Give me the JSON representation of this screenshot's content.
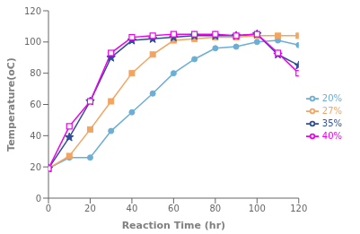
{
  "chart_data": {
    "type": "line",
    "xlabel": "Reaction Time (hr)",
    "ylabel": "Temperature(oC)",
    "x": [
      0,
      10,
      20,
      30,
      40,
      50,
      60,
      70,
      80,
      90,
      100,
      110,
      120
    ],
    "series": [
      {
        "name": "20%",
        "color": "#6BAED6",
        "marker": "circle",
        "line_style": "solid",
        "values": [
          19,
          26,
          26,
          43,
          55,
          67,
          80,
          89,
          96,
          97,
          100,
          101,
          98
        ]
      },
      {
        "name": "27%",
        "color": "#F4A460",
        "marker": "square",
        "line_style": "solid",
        "values": [
          19,
          27,
          44,
          62,
          80,
          92,
          101,
          102,
          103,
          103,
          104,
          104,
          104
        ]
      },
      {
        "name": "35%",
        "color": "#2E4D9A",
        "marker": "star",
        "line_style": "solid",
        "values": [
          19,
          39,
          62,
          90,
          101,
          102,
          103,
          104,
          104,
          104,
          105,
          92,
          85
        ]
      },
      {
        "name": "40%",
        "color": "#EE00EE",
        "marker": "square_open",
        "line_style": "solid",
        "values": [
          19,
          46,
          62,
          93,
          103,
          104,
          105,
          105,
          105,
          104,
          105,
          93,
          80
        ]
      }
    ],
    "xlim": [
      0,
      120
    ],
    "ylim": [
      0,
      120
    ],
    "xticks": [
      0,
      20,
      40,
      60,
      80,
      100,
      120
    ],
    "yticks": [
      0,
      20,
      40,
      60,
      80,
      100,
      120
    ],
    "grid": false,
    "legend": "right"
  }
}
